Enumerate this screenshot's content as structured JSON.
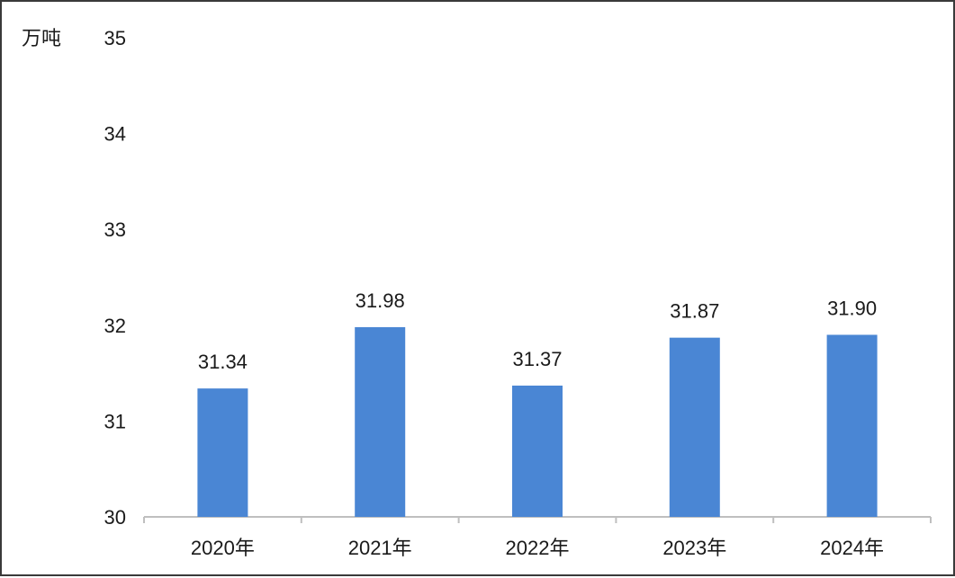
{
  "chart_data": {
    "type": "bar",
    "unit_label": "万吨",
    "categories": [
      "2020年",
      "2021年",
      "2022年",
      "2023年",
      "2024年"
    ],
    "values": [
      31.34,
      31.98,
      31.37,
      31.87,
      31.9
    ],
    "data_labels": [
      "31.34",
      "31.98",
      "31.37",
      "31.87",
      "31.90"
    ],
    "ylim": [
      30,
      35
    ],
    "yticks": [
      "30",
      "31",
      "32",
      "33",
      "34",
      "35"
    ],
    "grid": false,
    "bar_color": "#4a86d4"
  }
}
